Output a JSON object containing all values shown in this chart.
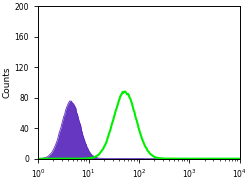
{
  "title": "",
  "ylabel": "Counts",
  "xlabel": "",
  "xlim": [
    1.0,
    10000.0
  ],
  "ylim": [
    0,
    200
  ],
  "yticks": [
    0,
    40,
    80,
    120,
    160,
    200
  ],
  "xtick_labels": [
    "10$^0$",
    "10$^1$",
    "10$^2$",
    "10$^3$",
    "10$^4$"
  ],
  "xtick_vals": [
    1.0,
    10.0,
    100.0,
    1000.0,
    10000.0
  ],
  "purple_peak_log10": 0.65,
  "purple_peak_height": 75,
  "purple_peak_log_sigma": 0.18,
  "green_peak_log10": 1.72,
  "green_peak_height": 88,
  "green_peak_log_sigma": 0.22,
  "purple_color": "#5522bb",
  "purple_fill": "#5522bb",
  "purple_alpha": 0.9,
  "green_color": "#00ee00",
  "background_color": "#ffffff",
  "figsize": [
    2.5,
    1.83
  ],
  "dpi": 100
}
